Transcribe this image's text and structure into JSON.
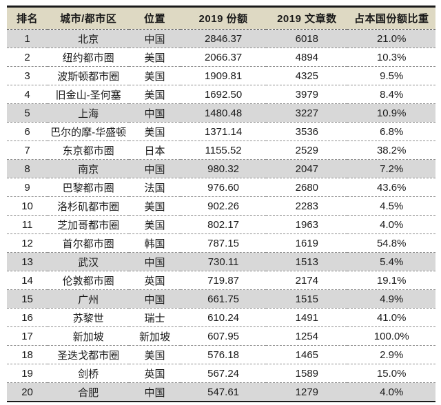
{
  "colors": {
    "header_bg": "#ded9c3",
    "highlight_row_bg": "#d8d8d8",
    "row_bg": "#ffffff",
    "border": "#1a1a1a",
    "text": "#1a1a1a"
  },
  "chart_data": {
    "type": "table",
    "title": "",
    "columns": [
      "排名",
      "城市/都市区",
      "位置",
      "2019 份额",
      "2019 文章数",
      "占本国份额比重"
    ],
    "rows": [
      [
        "1",
        "北京",
        "中国",
        "2846.37",
        "6018",
        "21.0%"
      ],
      [
        "2",
        "纽约都市圈",
        "美国",
        "2066.37",
        "4894",
        "10.3%"
      ],
      [
        "3",
        "波斯顿都市圈",
        "美国",
        "1909.81",
        "4325",
        "9.5%"
      ],
      [
        "4",
        "旧金山-圣何塞",
        "美国",
        "1692.50",
        "3979",
        "8.4%"
      ],
      [
        "5",
        "上海",
        "中国",
        "1480.48",
        "3227",
        "10.9%"
      ],
      [
        "6",
        "巴尔的摩-华盛顿",
        "美国",
        "1371.14",
        "3536",
        "6.8%"
      ],
      [
        "7",
        "东京都市圈",
        "日本",
        "1155.52",
        "2529",
        "38.2%"
      ],
      [
        "8",
        "南京",
        "中国",
        "980.32",
        "2047",
        "7.2%"
      ],
      [
        "9",
        "巴黎都市圈",
        "法国",
        "976.60",
        "2680",
        "43.6%"
      ],
      [
        "10",
        "洛杉矶都市圈",
        "美国",
        "902.26",
        "2283",
        "4.5%"
      ],
      [
        "11",
        "芝加哥都市圈",
        "美国",
        "802.17",
        "1963",
        "4.0%"
      ],
      [
        "12",
        "首尔都市圈",
        "韩国",
        "787.15",
        "1619",
        "54.8%"
      ],
      [
        "13",
        "武汉",
        "中国",
        "730.11",
        "1513",
        "5.4%"
      ],
      [
        "14",
        "伦敦都市圈",
        "英国",
        "719.87",
        "2174",
        "19.1%"
      ],
      [
        "15",
        "广州",
        "中国",
        "661.75",
        "1515",
        "4.9%"
      ],
      [
        "16",
        "苏黎世",
        "瑞士",
        "610.24",
        "1491",
        "41.0%"
      ],
      [
        "17",
        "新加坡",
        "新加坡",
        "607.95",
        "1254",
        "100.0%"
      ],
      [
        "18",
        "圣迭戈都市圈",
        "美国",
        "576.18",
        "1465",
        "2.9%"
      ],
      [
        "19",
        "剑桥",
        "英国",
        "567.24",
        "1589",
        "15.0%"
      ],
      [
        "20",
        "合肥",
        "中国",
        "547.61",
        "1279",
        "4.0%"
      ]
    ],
    "highlighted_row_indices": [
      0,
      4,
      7,
      12,
      14,
      19
    ],
    "column_widths_pct": [
      9.5,
      19,
      12,
      20,
      19,
      20.5
    ],
    "legend_position": "none",
    "grid": "dashed-horizontal"
  }
}
